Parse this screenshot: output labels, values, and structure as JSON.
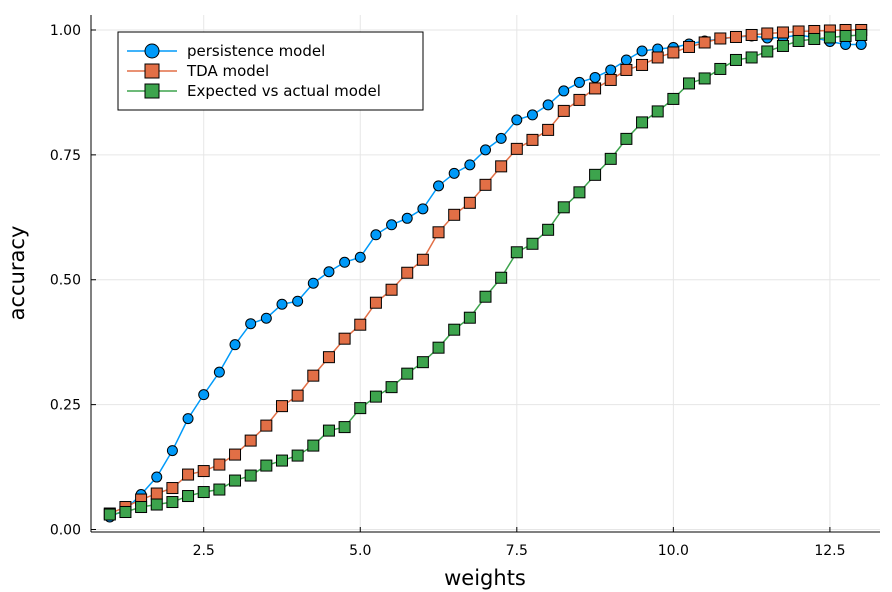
{
  "chart_data": {
    "type": "line",
    "title": "",
    "xlabel": "weights",
    "ylabel": "accuracy",
    "xlim": [
      0.7,
      13.3
    ],
    "ylim": [
      -0.005,
      1.03
    ],
    "grid": true,
    "legend_position": "top-left",
    "x_ticks": [
      2.5,
      5.0,
      7.5,
      10.0,
      12.5
    ],
    "x_tick_labels": [
      "2.5",
      "5.0",
      "7.5",
      "10.0",
      "12.5"
    ],
    "y_ticks": [
      0.0,
      0.25,
      0.5,
      0.75,
      1.0
    ],
    "y_tick_labels": [
      "0.00",
      "0.25",
      "0.50",
      "0.75",
      "1.00"
    ],
    "x": [
      1.0,
      1.25,
      1.5,
      1.75,
      2.0,
      2.25,
      2.5,
      2.75,
      3.0,
      3.25,
      3.5,
      3.75,
      4.0,
      4.25,
      4.5,
      4.75,
      5.0,
      5.25,
      5.5,
      5.75,
      6.0,
      6.25,
      6.5,
      6.75,
      7.0,
      7.25,
      7.5,
      7.75,
      8.0,
      8.25,
      8.5,
      8.75,
      9.0,
      9.25,
      9.5,
      9.75,
      10.0,
      10.25,
      10.5,
      10.75,
      11.0,
      11.25,
      11.5,
      11.75,
      12.0,
      12.25,
      12.5,
      12.75,
      13.0
    ],
    "series": [
      {
        "name": "persistence model",
        "marker": "circle",
        "color": "#009af9",
        "values": [
          0.025,
          0.04,
          0.07,
          0.105,
          0.158,
          0.222,
          0.27,
          0.315,
          0.37,
          0.412,
          0.423,
          0.451,
          0.457,
          0.493,
          0.516,
          0.535,
          0.545,
          0.59,
          0.61,
          0.623,
          0.642,
          0.688,
          0.713,
          0.73,
          0.76,
          0.783,
          0.82,
          0.83,
          0.85,
          0.878,
          0.895,
          0.905,
          0.92,
          0.94,
          0.958,
          0.962,
          0.965,
          0.972,
          0.978,
          0.982,
          0.986,
          0.988,
          0.984,
          0.985,
          0.99,
          0.985,
          0.977,
          0.971,
          0.971
        ]
      },
      {
        "name": "TDA model",
        "marker": "square",
        "color": "#e26f46",
        "values": [
          0.032,
          0.045,
          0.06,
          0.072,
          0.083,
          0.11,
          0.117,
          0.13,
          0.15,
          0.178,
          0.208,
          0.247,
          0.268,
          0.308,
          0.345,
          0.382,
          0.41,
          0.454,
          0.48,
          0.514,
          0.54,
          0.595,
          0.63,
          0.654,
          0.69,
          0.727,
          0.762,
          0.78,
          0.8,
          0.838,
          0.86,
          0.883,
          0.9,
          0.92,
          0.93,
          0.945,
          0.955,
          0.966,
          0.975,
          0.983,
          0.986,
          0.99,
          0.993,
          0.995,
          0.997,
          0.998,
          0.999,
          1.0,
          1.0
        ]
      },
      {
        "name": "Expected vs actual model",
        "marker": "square",
        "color": "#3da44d",
        "values": [
          0.03,
          0.035,
          0.045,
          0.05,
          0.055,
          0.067,
          0.075,
          0.08,
          0.098,
          0.108,
          0.128,
          0.138,
          0.148,
          0.168,
          0.198,
          0.205,
          0.243,
          0.266,
          0.285,
          0.312,
          0.335,
          0.364,
          0.4,
          0.424,
          0.466,
          0.504,
          0.555,
          0.572,
          0.6,
          0.645,
          0.675,
          0.71,
          0.742,
          0.782,
          0.815,
          0.837,
          0.862,
          0.893,
          0.903,
          0.922,
          0.94,
          0.945,
          0.957,
          0.968,
          0.978,
          0.982,
          0.985,
          0.988,
          0.99
        ]
      }
    ]
  }
}
